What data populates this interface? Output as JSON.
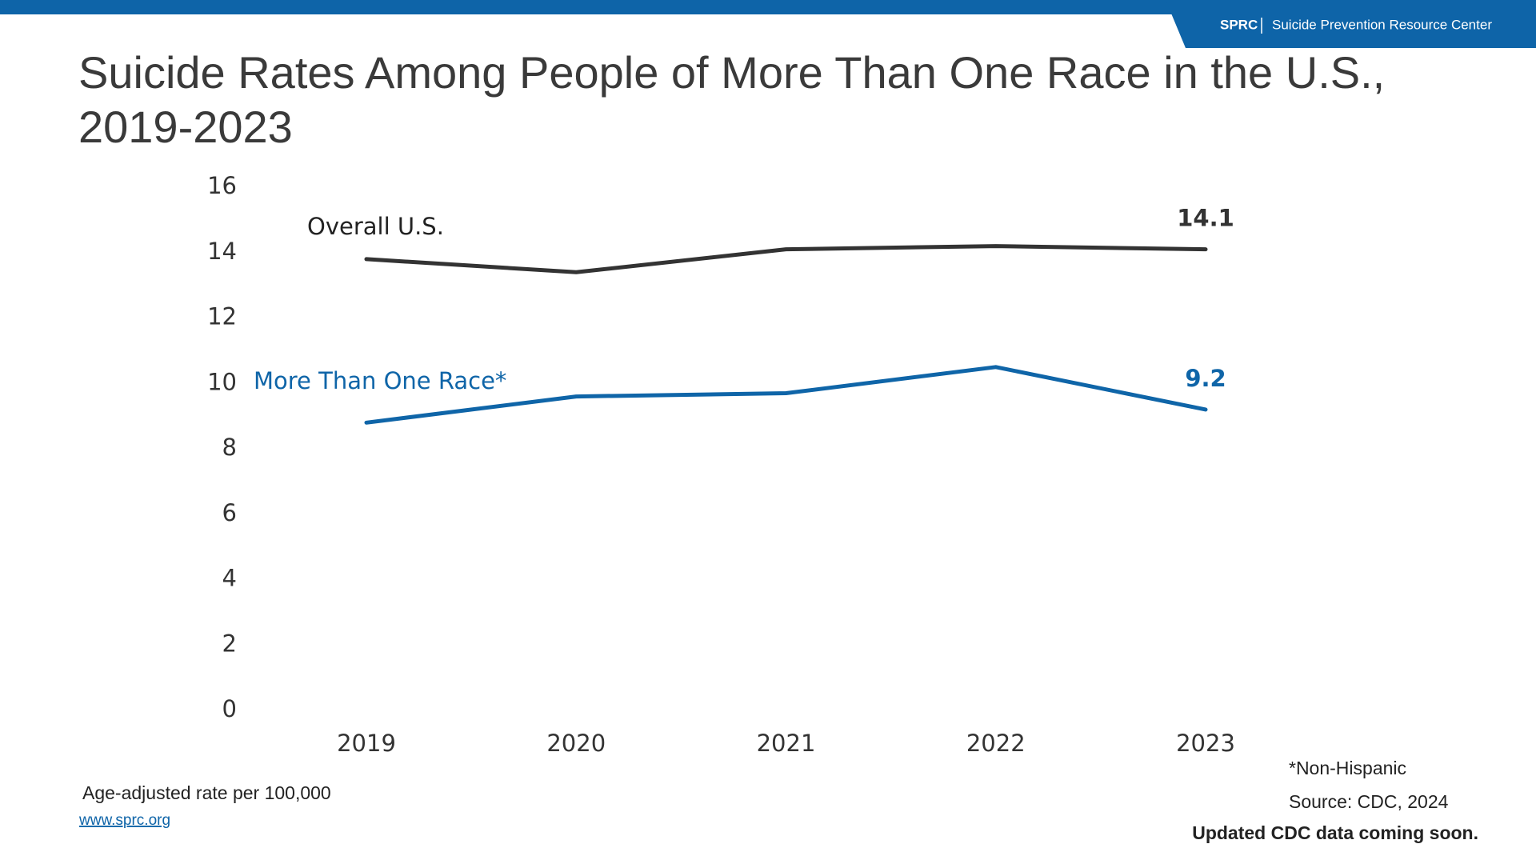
{
  "header": {
    "brand": "SPRC",
    "org": "Suicide Prevention Resource Center"
  },
  "chart_data": {
    "type": "line",
    "title": "Suicide Rates Among People of More Than One Race in the U.S., 2019-2023",
    "categories": [
      "2019",
      "2020",
      "2021",
      "2022",
      "2023"
    ],
    "series": [
      {
        "name": "Overall U.S.",
        "color": "#333333",
        "values": [
          13.8,
          13.4,
          14.1,
          14.2,
          14.1
        ]
      },
      {
        "name": "More Than One Race*",
        "color": "#0f65a8",
        "values": [
          8.8,
          9.6,
          9.7,
          10.5,
          9.2
        ]
      }
    ],
    "ylim": [
      0,
      16
    ],
    "yticks": [
      0,
      2,
      4,
      6,
      8,
      10,
      12,
      14,
      16
    ],
    "grid": false,
    "data_labels": "last",
    "legend": "direct"
  },
  "notes": {
    "units": "Age-adjusted rate per 100,000",
    "url": "www.sprc.org",
    "footnote": "*Non-Hispanic",
    "source": "Source: CDC, 2024",
    "update": "Updated CDC data coming soon."
  }
}
